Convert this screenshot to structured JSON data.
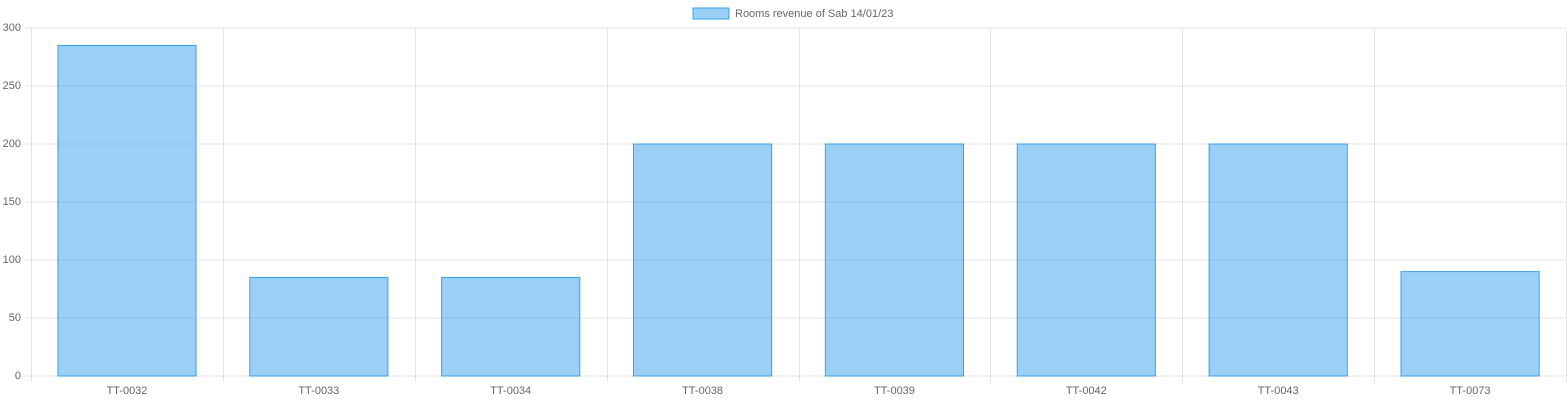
{
  "chart_data": {
    "type": "bar",
    "categories": [
      "TT-0032",
      "TT-0033",
      "TT-0034",
      "TT-0038",
      "TT-0039",
      "TT-0042",
      "TT-0043",
      "TT-0073"
    ],
    "series": [
      {
        "name": "Rooms revenue of Sab 14/01/23",
        "color": "#36a2eb",
        "values": [
          285,
          85,
          85,
          200,
          200,
          200,
          200,
          90
        ]
      }
    ],
    "ylim": [
      0,
      300
    ],
    "yticks": [
      0,
      50,
      100,
      150,
      200,
      250,
      300
    ],
    "grid": true,
    "legend": "top"
  }
}
